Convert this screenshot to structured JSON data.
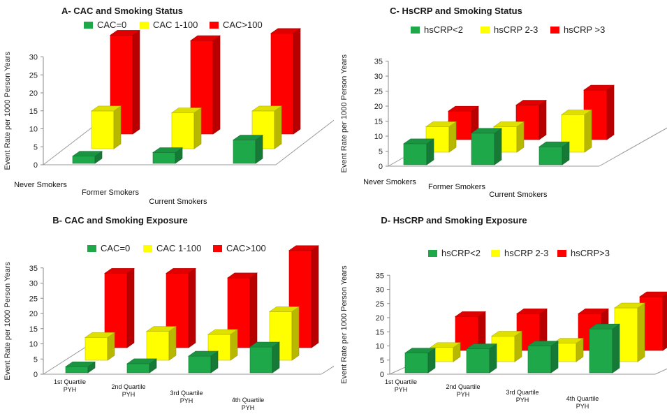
{
  "chart_data": [
    {
      "type": "bar",
      "title": "A- CAC and Smoking Status",
      "ylabel": "Event Rate per 1000 Person Years",
      "ylim": [
        0,
        30
      ],
      "yticks": [
        0,
        5,
        10,
        15,
        20,
        25,
        30
      ],
      "categories": [
        [
          "Never Smokers"
        ],
        [
          "Former Smokers"
        ],
        [
          "Current Smokers"
        ]
      ],
      "series": [
        {
          "name": "CAC=0",
          "color": "#1fa84a",
          "values": [
            2,
            3,
            6.5
          ]
        },
        {
          "name": "CAC 1-100",
          "color": "#ffff00",
          "values": [
            10.5,
            10,
            10.5
          ]
        },
        {
          "name": "CAC>100",
          "color": "#ff0000",
          "values": [
            27.5,
            26,
            28
          ]
        }
      ]
    },
    {
      "type": "bar",
      "title": "C- HsCRP and Smoking Status",
      "ylabel": "Event Rate per 1000 Person Years",
      "ylim": [
        0,
        35
      ],
      "yticks": [
        0,
        5,
        10,
        15,
        20,
        25,
        30,
        35
      ],
      "categories": [
        [
          "Never Smokers"
        ],
        [
          "Former Smokers"
        ],
        [
          "Current Smokers"
        ]
      ],
      "series": [
        {
          "name": "hsCRP<2",
          "color": "#1fa84a",
          "values": [
            7,
            10.5,
            6
          ]
        },
        {
          "name": "hsCRP 2-3",
          "color": "#ffff00",
          "values": [
            8.5,
            8.5,
            12.5
          ]
        },
        {
          "name": "hsCRP >3",
          "color": "#ff0000",
          "values": [
            9.5,
            11.5,
            16.5
          ]
        }
      ]
    },
    {
      "type": "bar",
      "title": "B- CAC and Smoking Exposure",
      "ylabel": "Event Rate per 1000 Person Years",
      "ylim": [
        0,
        35
      ],
      "yticks": [
        0,
        5,
        10,
        15,
        20,
        25,
        30,
        35
      ],
      "categories": [
        [
          "1st Quartile",
          "PYH"
        ],
        [
          "2nd Quartile",
          "PYH"
        ],
        [
          "3rd Quartile",
          "PYH"
        ],
        [
          "4th Quartile",
          "PYH"
        ]
      ],
      "series": [
        {
          "name": "CAC=0",
          "color": "#1fa84a",
          "values": [
            2,
            3,
            5.5,
            8.5
          ]
        },
        {
          "name": "CAC 1-100",
          "color": "#ffff00",
          "values": [
            7.5,
            9.5,
            8.5,
            16
          ]
        },
        {
          "name": "CAC>100",
          "color": "#ff0000",
          "values": [
            24.5,
            24.5,
            23,
            32
          ]
        }
      ]
    },
    {
      "type": "bar",
      "title": "D- HsCRP and Smoking Exposure",
      "ylabel": "Event Rate per 1000 Person Years",
      "ylim": [
        0,
        35
      ],
      "yticks": [
        0,
        5,
        10,
        15,
        20,
        25,
        30,
        35
      ],
      "categories": [
        [
          "1st Quartile",
          "PYH"
        ],
        [
          "2nd Quartile",
          "PYH"
        ],
        [
          "3rd Quartile",
          "PYH"
        ],
        [
          "4th Quartile",
          "PYH"
        ]
      ],
      "series": [
        {
          "name": "hsCRP<2",
          "color": "#1fa84a",
          "values": [
            7,
            8.5,
            9.5,
            15.5
          ]
        },
        {
          "name": "hsCRP 2-3",
          "color": "#ffff00",
          "values": [
            5,
            9,
            6.5,
            19
          ]
        },
        {
          "name": "hsCRP>3",
          "color": "#ff0000",
          "values": [
            12,
            13,
            13,
            19
          ]
        }
      ]
    }
  ]
}
